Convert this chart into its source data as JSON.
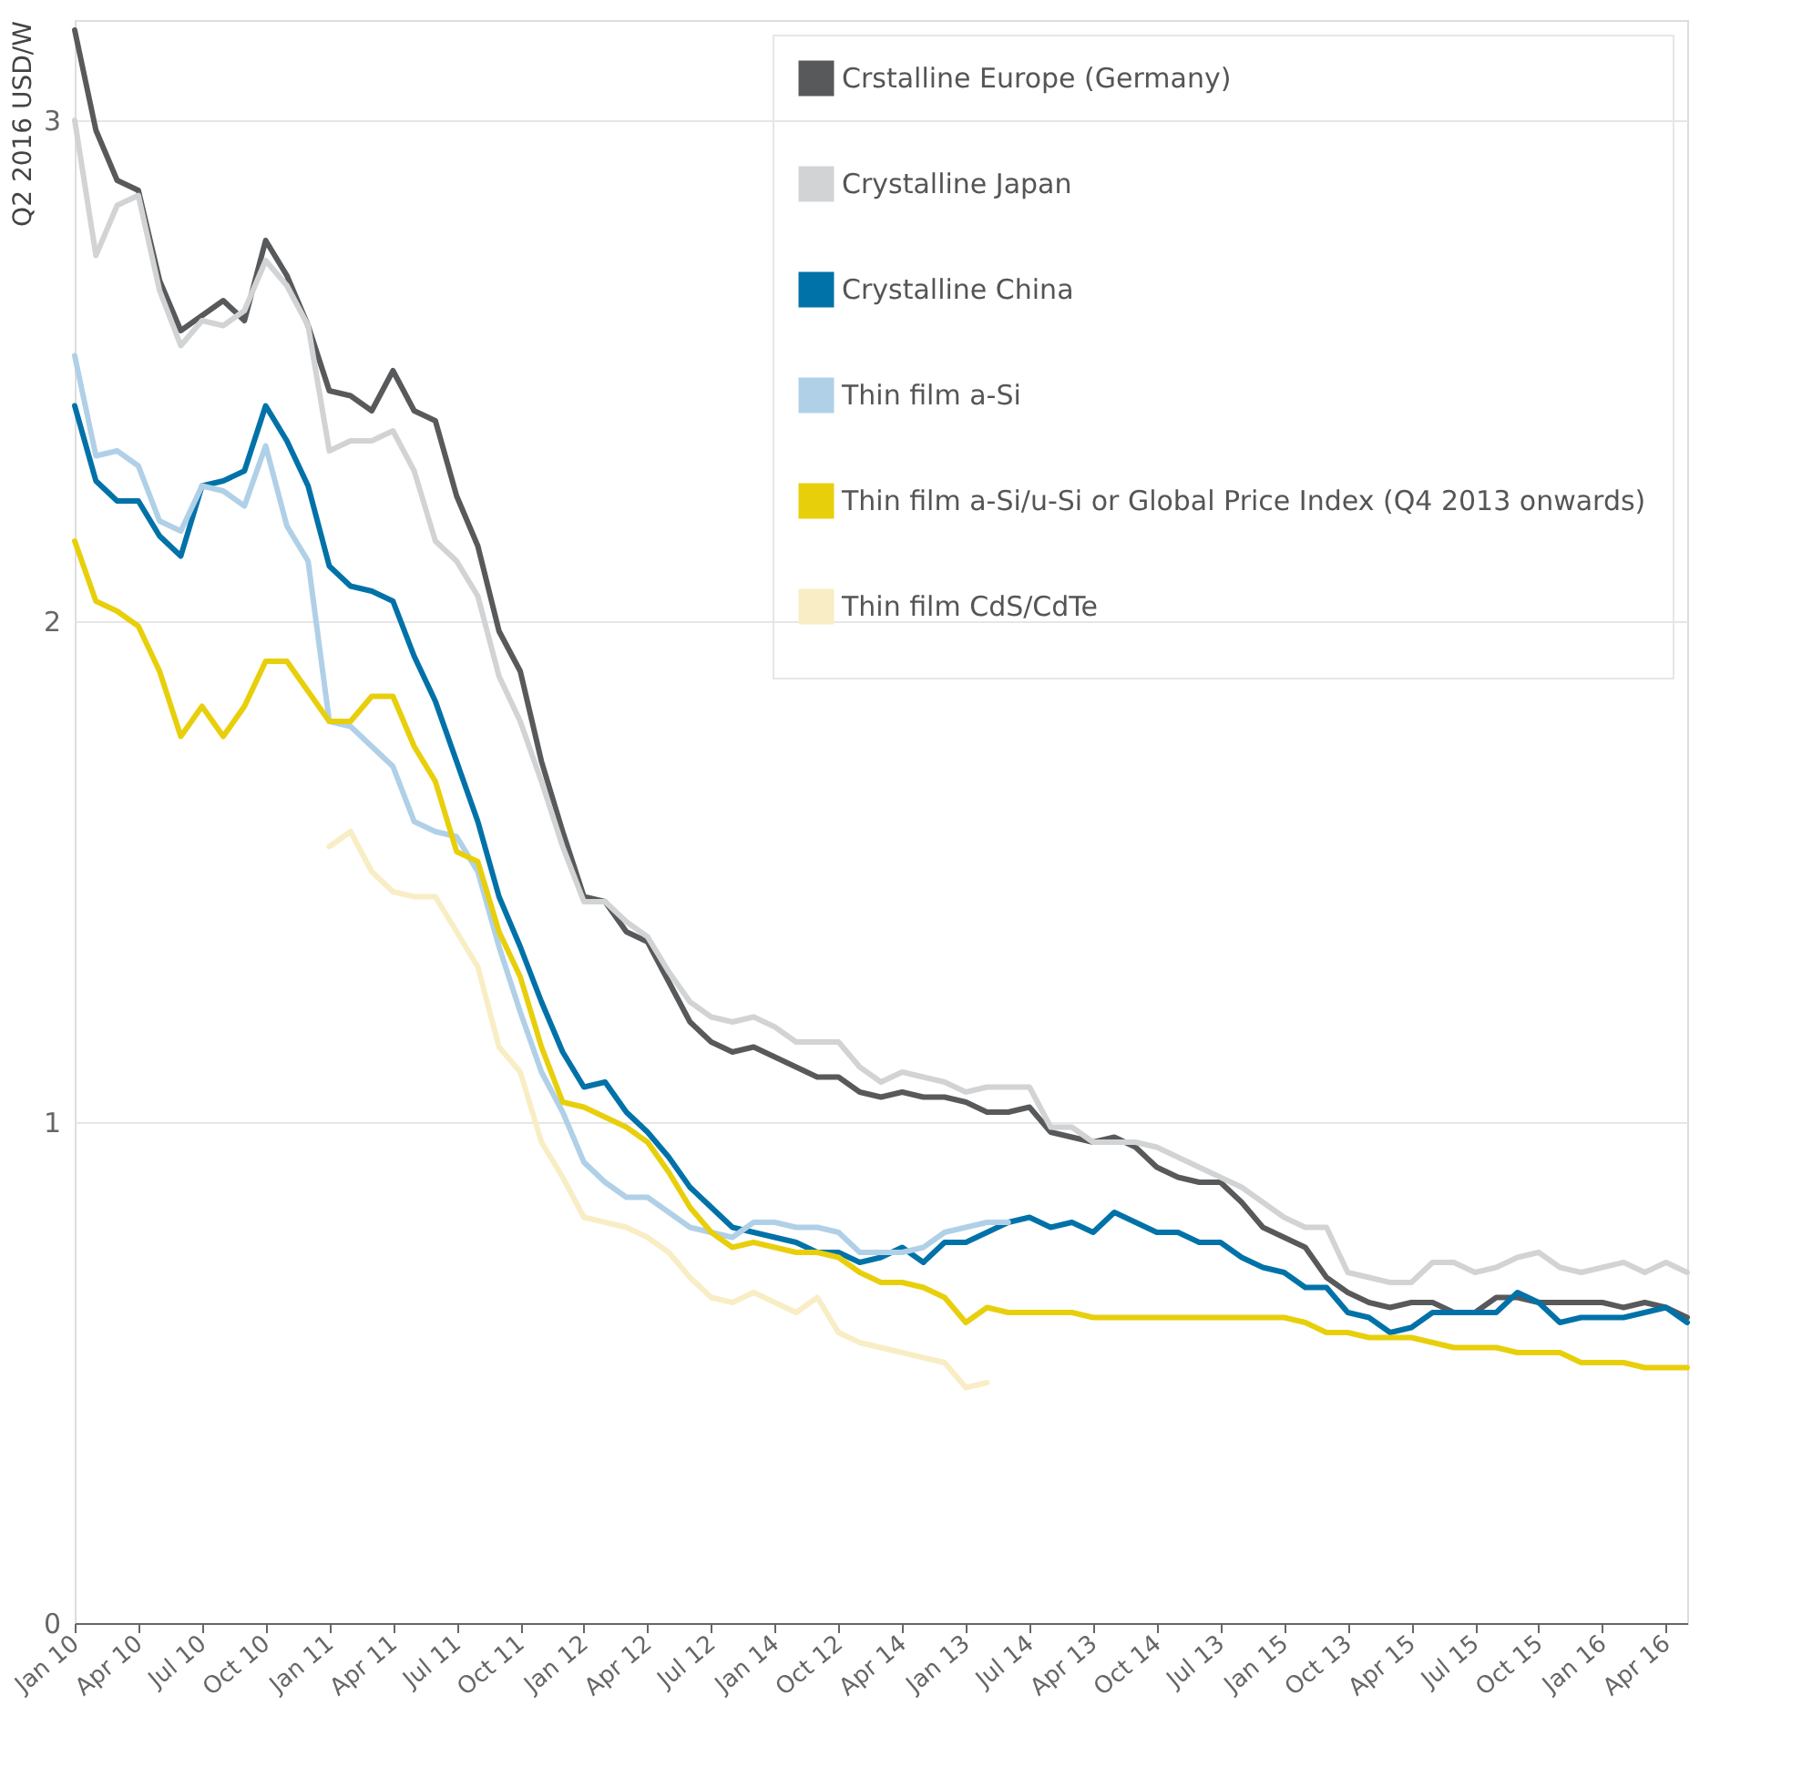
{
  "chart_data": {
    "type": "line",
    "ylabel": "Q2 2016 USD/W",
    "categories": [
      "Jan 10",
      null,
      null,
      "Apr 10",
      null,
      null,
      "Jul 10",
      null,
      null,
      "Oct 10",
      null,
      null,
      "Jan 11",
      null,
      null,
      "Apr 11",
      null,
      null,
      "Jul 11",
      null,
      null,
      "Oct 11",
      null,
      null,
      "Jan 12",
      null,
      null,
      "Apr 12",
      null,
      null,
      "Jul 12",
      null,
      null,
      "Jan 14",
      null,
      null,
      "Oct 12",
      null,
      null,
      "Apr 14",
      null,
      null,
      "Jan 13",
      null,
      null,
      "Jul 14",
      null,
      null,
      "Apr 13",
      null,
      null,
      "Oct 14",
      null,
      null,
      "Jul 13",
      null,
      null,
      "Jan 15",
      null,
      null,
      "Oct 13",
      null,
      null,
      "Apr 15",
      null,
      null,
      "Jul 15",
      null,
      null,
      "Oct 15",
      null,
      null,
      "Jan 16",
      null,
      null,
      "Apr 16",
      null
    ],
    "series": [
      {
        "name": "Crstalline Europe (Germany)",
        "color": "#58595b",
        "values": [
          3.18,
          2.98,
          2.88,
          2.86,
          2.68,
          2.58,
          2.61,
          2.64,
          2.6,
          2.76,
          2.69,
          2.59,
          2.46,
          2.45,
          2.42,
          2.5,
          2.42,
          2.4,
          2.25,
          2.15,
          1.98,
          1.9,
          1.72,
          1.58,
          1.45,
          1.44,
          1.38,
          1.36,
          1.28,
          1.2,
          1.16,
          1.14,
          1.15,
          1.13,
          1.11,
          1.09,
          1.09,
          1.06,
          1.05,
          1.06,
          1.05,
          1.05,
          1.04,
          1.02,
          1.02,
          1.03,
          0.98,
          0.97,
          0.96,
          0.97,
          0.95,
          0.91,
          0.89,
          0.88,
          0.88,
          0.84,
          0.79,
          0.77,
          0.75,
          0.69,
          0.66,
          0.64,
          0.63,
          0.64,
          0.64,
          0.62,
          0.62,
          0.65,
          0.65,
          0.64,
          0.64,
          0.64,
          0.64,
          0.63,
          0.64,
          0.63,
          0.61
        ]
      },
      {
        "name": "Crystalline Japan",
        "color": "#d1d3d4",
        "values": [
          3.0,
          2.73,
          2.83,
          2.85,
          2.66,
          2.55,
          2.6,
          2.59,
          2.62,
          2.72,
          2.67,
          2.59,
          2.34,
          2.36,
          2.36,
          2.38,
          2.3,
          2.16,
          2.12,
          2.05,
          1.89,
          1.8,
          1.68,
          1.55,
          1.44,
          1.44,
          1.4,
          1.37,
          1.3,
          1.24,
          1.21,
          1.2,
          1.21,
          1.19,
          1.16,
          1.16,
          1.16,
          1.11,
          1.08,
          1.1,
          1.09,
          1.08,
          1.06,
          1.07,
          1.07,
          1.07,
          0.99,
          0.99,
          0.96,
          0.96,
          0.96,
          0.95,
          0.93,
          0.91,
          0.89,
          0.87,
          0.84,
          0.81,
          0.79,
          0.79,
          0.7,
          0.69,
          0.68,
          0.68,
          0.72,
          0.72,
          0.7,
          0.71,
          0.73,
          0.74,
          0.71,
          0.7,
          0.71,
          0.72,
          0.7,
          0.72,
          0.7
        ]
      },
      {
        "name": "Crystalline China",
        "color": "#0072a8",
        "values": [
          2.43,
          2.28,
          2.24,
          2.24,
          2.17,
          2.13,
          2.27,
          2.28,
          2.3,
          2.43,
          2.36,
          2.27,
          2.11,
          2.07,
          2.06,
          2.04,
          1.93,
          1.84,
          1.72,
          1.6,
          1.45,
          1.35,
          1.24,
          1.14,
          1.07,
          1.08,
          1.02,
          0.98,
          0.93,
          0.87,
          0.83,
          0.79,
          0.78,
          0.77,
          0.76,
          0.74,
          0.74,
          0.72,
          0.73,
          0.75,
          0.72,
          0.76,
          0.76,
          0.78,
          0.8,
          0.81,
          0.79,
          0.8,
          0.78,
          0.82,
          0.8,
          0.78,
          0.78,
          0.76,
          0.76,
          0.73,
          0.71,
          0.7,
          0.67,
          0.67,
          0.62,
          0.61,
          0.58,
          0.59,
          0.62,
          0.62,
          0.62,
          0.62,
          0.66,
          0.64,
          0.6,
          0.61,
          0.61,
          0.61,
          0.62,
          0.63,
          0.6
        ]
      },
      {
        "name": "Thin film a-Si",
        "color": "#b0d0e8",
        "values": [
          2.53,
          2.33,
          2.34,
          2.31,
          2.2,
          2.18,
          2.27,
          2.26,
          2.23,
          2.35,
          2.19,
          2.12,
          1.8,
          1.79,
          1.75,
          1.71,
          1.6,
          1.58,
          1.57,
          1.5,
          1.35,
          1.22,
          1.1,
          1.02,
          0.92,
          0.88,
          0.85,
          0.85,
          0.82,
          0.79,
          0.78,
          0.77,
          0.8,
          0.8,
          0.79,
          0.79,
          0.78,
          0.74,
          0.74,
          0.74,
          0.75,
          0.78,
          0.79,
          0.8,
          0.8,
          null,
          null,
          null,
          null,
          null,
          null,
          null,
          null,
          null,
          null,
          null,
          null,
          null,
          null,
          null,
          null,
          null,
          null,
          null,
          null,
          null,
          null,
          null,
          null,
          null,
          null,
          null,
          null,
          null,
          null,
          null,
          null
        ]
      },
      {
        "name": "Thin film a-Si/u-Si or Global Price Index (Q4 2013 onwards)",
        "color": "#e8cf0c",
        "values": [
          2.16,
          2.04,
          2.02,
          1.99,
          1.9,
          1.77,
          1.83,
          1.77,
          1.83,
          1.92,
          1.92,
          1.86,
          1.8,
          1.8,
          1.85,
          1.85,
          1.75,
          1.68,
          1.54,
          1.52,
          1.38,
          1.29,
          1.15,
          1.04,
          1.03,
          1.01,
          0.99,
          0.96,
          0.9,
          0.83,
          0.78,
          0.75,
          0.76,
          0.75,
          0.74,
          0.74,
          0.73,
          0.7,
          0.68,
          0.68,
          0.67,
          0.65,
          0.6,
          0.63,
          0.62,
          0.62,
          0.62,
          0.62,
          0.61,
          0.61,
          0.61,
          0.61,
          0.61,
          0.61,
          0.61,
          0.61,
          0.61,
          0.61,
          0.6,
          0.58,
          0.58,
          0.57,
          0.57,
          0.57,
          0.56,
          0.55,
          0.55,
          0.55,
          0.54,
          0.54,
          0.54,
          0.52,
          0.52,
          0.52,
          0.51,
          0.51,
          0.51
        ]
      },
      {
        "name": "Thin film CdS/CdTe",
        "color": "#f8edc4",
        "values": [
          null,
          null,
          null,
          null,
          null,
          null,
          null,
          null,
          null,
          null,
          null,
          null,
          1.55,
          1.58,
          1.5,
          1.46,
          1.45,
          1.45,
          1.38,
          1.31,
          1.15,
          1.1,
          0.96,
          0.89,
          0.81,
          0.8,
          0.79,
          0.77,
          0.74,
          0.69,
          0.65,
          0.64,
          0.66,
          0.64,
          0.62,
          0.65,
          0.58,
          0.56,
          0.55,
          0.54,
          0.53,
          0.52,
          0.47,
          0.48,
          null,
          null,
          null,
          null,
          null,
          null,
          null,
          null,
          null,
          null,
          null,
          null,
          null,
          null,
          null,
          null,
          null,
          null,
          null,
          null,
          null,
          null,
          null,
          null,
          null,
          null,
          null,
          null,
          null,
          null,
          null,
          null,
          null
        ]
      }
    ],
    "ylim": [
      0,
      3.2
    ],
    "yticks": [
      0,
      1,
      2,
      3
    ],
    "grid": "y",
    "legend": "top right",
    "line_style": "solid",
    "marker": "none"
  }
}
